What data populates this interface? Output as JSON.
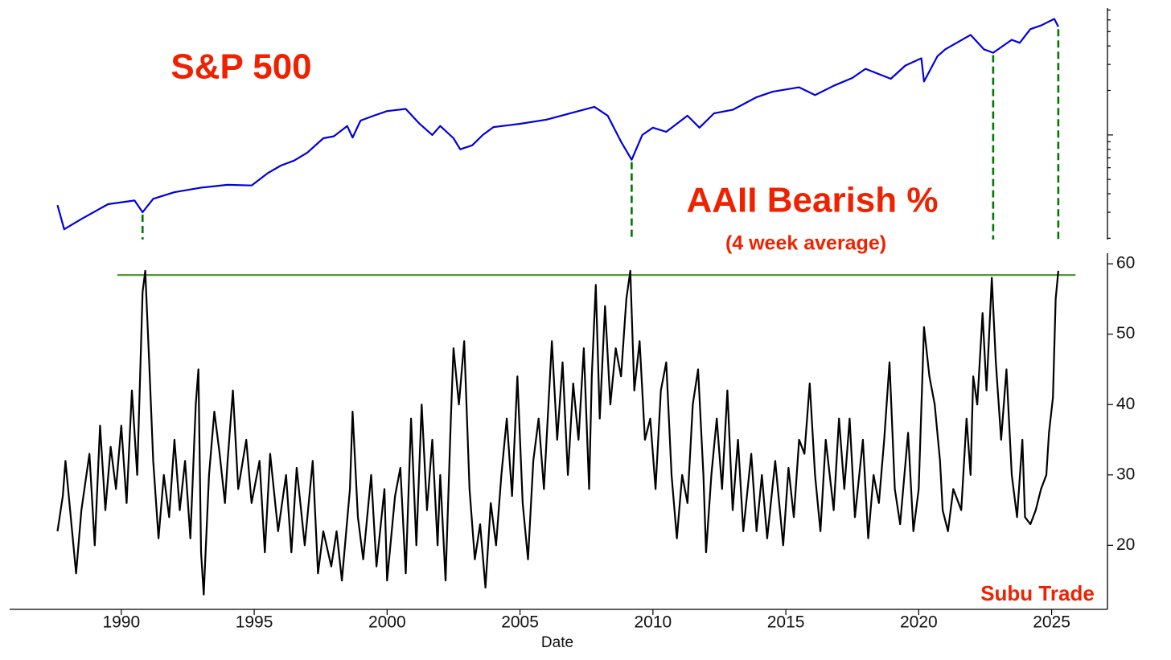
{
  "chart_data": [
    {
      "type": "line",
      "title": "S&P 500",
      "log_scale": true,
      "color": "#0000dd",
      "xlim": [
        1985.8,
        2027.1
      ],
      "ylim": [
        196,
        7220
      ],
      "yticks": [
        200,
        300,
        400,
        500,
        600,
        700,
        800,
        900,
        1000,
        2000,
        3000,
        4000,
        5000,
        6000,
        7000
      ],
      "ytick_labels": false,
      "x": [
        1987.6,
        1987.85,
        1988.5,
        1989.5,
        1990.5,
        1990.8,
        1991.2,
        1992,
        1993,
        1994,
        1994.9,
        1995.5,
        1996,
        1996.5,
        1997,
        1997.6,
        1998,
        1998.5,
        1998.7,
        1999,
        1999.5,
        2000,
        2000.7,
        2001.2,
        2001.7,
        2002,
        2002.5,
        2002.75,
        2003.2,
        2003.6,
        2004,
        2005,
        2006,
        2007,
        2007.8,
        2008.3,
        2008.8,
        2009.2,
        2009.6,
        2010,
        2010.5,
        2011.3,
        2011.75,
        2012.3,
        2013,
        2013.9,
        2014.5,
        2015.5,
        2016.1,
        2016.8,
        2017.5,
        2018,
        2018.95,
        2019.5,
        2020.1,
        2020.2,
        2020.7,
        2021,
        2021.95,
        2022.45,
        2022.8,
        2023.5,
        2023.8,
        2024.2,
        2024.6,
        2025.1,
        2025.25
      ],
      "values": [
        335,
        230,
        270,
        340,
        360,
        300,
        370,
        410,
        440,
        460,
        455,
        550,
        620,
        670,
        760,
        950,
        980,
        1150,
        960,
        1250,
        1350,
        1450,
        1500,
        1200,
        1000,
        1150,
        950,
        800,
        850,
        1000,
        1130,
        1190,
        1270,
        1420,
        1550,
        1350,
        900,
        680,
        1000,
        1120,
        1050,
        1350,
        1120,
        1400,
        1480,
        1800,
        1960,
        2100,
        1860,
        2150,
        2430,
        2800,
        2400,
        2950,
        3300,
        2300,
        3400,
        3800,
        4750,
        3800,
        3600,
        4400,
        4200,
        5200,
        5500,
        6100,
        5400
      ],
      "markers": {
        "x": [
          1990.8,
          2009.2,
          2022.8,
          2025.25
        ],
        "color": "#007700"
      }
    },
    {
      "type": "line",
      "title": "AAII Bearish %",
      "subtitle": "(4 week average)",
      "annotation": "Subu Trade",
      "xlabel": "Date",
      "color": "#000000",
      "xlim": [
        1985.8,
        2027.1
      ],
      "ylim": [
        10.9,
        61.5
      ],
      "xticks": [
        1990,
        1995,
        2000,
        2005,
        2010,
        2015,
        2020,
        2025
      ],
      "yticks": [
        20,
        30,
        40,
        50,
        60
      ],
      "hline": {
        "y": 58.4,
        "x": [
          1989.85,
          2025.9
        ],
        "color": "#559933"
      },
      "x": [
        1987.6,
        1987.8,
        1987.9,
        1988.1,
        1988.3,
        1988.5,
        1988.8,
        1989.0,
        1989.2,
        1989.4,
        1989.6,
        1989.8,
        1990.0,
        1990.2,
        1990.4,
        1990.6,
        1990.8,
        1990.9,
        1991.05,
        1991.2,
        1991.4,
        1991.6,
        1991.8,
        1992.0,
        1992.2,
        1992.4,
        1992.6,
        1992.8,
        1992.9,
        1993.0,
        1993.1,
        1993.3,
        1993.5,
        1993.7,
        1993.9,
        1994.0,
        1994.2,
        1994.4,
        1994.7,
        1994.9,
        1995.2,
        1995.4,
        1995.6,
        1995.9,
        1996.2,
        1996.4,
        1996.6,
        1996.9,
        1997.2,
        1997.4,
        1997.6,
        1997.9,
        1998.1,
        1998.3,
        1998.6,
        1998.7,
        1998.9,
        1999.1,
        1999.4,
        1999.6,
        1999.9,
        2000.0,
        2000.3,
        2000.5,
        2000.7,
        2000.9,
        2001.1,
        2001.3,
        2001.5,
        2001.7,
        2001.9,
        2002.0,
        2002.2,
        2002.4,
        2002.5,
        2002.7,
        2002.9,
        2003.1,
        2003.3,
        2003.5,
        2003.7,
        2003.9,
        2004.1,
        2004.3,
        2004.5,
        2004.7,
        2004.9,
        2005.1,
        2005.3,
        2005.5,
        2005.7,
        2005.9,
        2006.2,
        2006.4,
        2006.6,
        2006.8,
        2007.0,
        2007.2,
        2007.4,
        2007.6,
        2007.7,
        2007.85,
        2008.0,
        2008.2,
        2008.4,
        2008.6,
        2008.8,
        2009.0,
        2009.15,
        2009.3,
        2009.5,
        2009.7,
        2009.9,
        2010.1,
        2010.3,
        2010.5,
        2010.7,
        2010.9,
        2011.1,
        2011.3,
        2011.5,
        2011.7,
        2011.9,
        2012.0,
        2012.2,
        2012.4,
        2012.6,
        2012.8,
        2013.0,
        2013.2,
        2013.4,
        2013.7,
        2013.9,
        2014.1,
        2014.3,
        2014.6,
        2014.9,
        2015.1,
        2015.3,
        2015.5,
        2015.7,
        2015.9,
        2016.1,
        2016.3,
        2016.5,
        2016.8,
        2017.0,
        2017.2,
        2017.4,
        2017.6,
        2017.9,
        2018.1,
        2018.3,
        2018.5,
        2018.7,
        2018.9,
        2019.1,
        2019.3,
        2019.6,
        2019.8,
        2020.0,
        2020.2,
        2020.4,
        2020.6,
        2020.8,
        2020.9,
        2021.1,
        2021.3,
        2021.6,
        2021.8,
        2021.95,
        2022.05,
        2022.2,
        2022.4,
        2022.55,
        2022.75,
        2022.9,
        2023.1,
        2023.3,
        2023.5,
        2023.7,
        2023.9,
        2024.0,
        2024.2,
        2024.4,
        2024.6,
        2024.8,
        2024.9,
        2025.05,
        2025.15,
        2025.25
      ],
      "values": [
        22,
        27,
        32,
        24,
        16,
        25,
        33,
        20,
        37,
        25,
        34,
        28,
        37,
        26,
        42,
        30,
        56,
        59,
        46,
        32,
        21,
        30,
        24,
        35,
        25,
        32,
        21,
        40,
        45,
        19,
        13,
        30,
        39,
        33,
        26,
        32,
        42,
        28,
        35,
        26,
        32,
        19,
        33,
        22,
        30,
        19,
        31,
        20,
        32,
        16,
        22,
        17,
        22,
        15,
        28,
        39,
        24,
        18,
        30,
        17,
        28,
        15,
        27,
        31,
        16,
        38,
        20,
        40,
        25,
        35,
        20,
        30,
        15,
        38,
        48,
        40,
        49,
        28,
        18,
        23,
        14,
        26,
        20,
        30,
        38,
        27,
        44,
        26,
        18,
        32,
        38,
        28,
        49,
        35,
        46,
        30,
        43,
        35,
        48,
        28,
        44,
        57,
        38,
        54,
        40,
        48,
        44,
        55,
        59,
        42,
        49,
        35,
        38,
        28,
        42,
        46,
        30,
        21,
        30,
        26,
        40,
        45,
        30,
        19,
        30,
        38,
        28,
        42,
        25,
        35,
        22,
        33,
        22,
        30,
        21,
        32,
        20,
        31,
        24,
        35,
        33,
        43,
        30,
        22,
        35,
        25,
        38,
        28,
        38,
        24,
        35,
        21,
        30,
        26,
        35,
        46,
        28,
        23,
        36,
        22,
        28,
        51,
        44,
        40,
        32,
        25,
        22,
        28,
        25,
        38,
        30,
        44,
        40,
        53,
        42,
        58,
        46,
        35,
        45,
        30,
        24,
        35,
        24,
        23,
        25,
        28,
        30,
        36,
        41,
        55,
        59
      ]
    }
  ]
}
